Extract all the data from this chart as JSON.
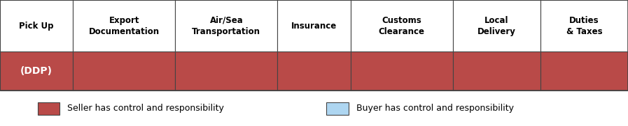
{
  "columns": [
    "Pick Up",
    "Export\nDocumentation",
    "Air/Sea\nTransportation",
    "Insurance",
    "Customs\nClearance",
    "Local\nDelivery",
    "Duties\n& Taxes"
  ],
  "col_widths": [
    1.0,
    1.4,
    1.4,
    1.0,
    1.4,
    1.2,
    1.2
  ],
  "row_label": "(DDP)",
  "seller_color": "#B94A48",
  "buyer_color": "#AED6F1",
  "header_bg": "#FFFFFF",
  "border_color": "#444444",
  "legend_seller_label": "Seller has control and responsibility",
  "legend_buyer_label": "Buyer has control and responsibility",
  "seller_cells": [
    0,
    1,
    2,
    3,
    4,
    5,
    6
  ],
  "buyer_cells": [],
  "fig_width": 8.97,
  "fig_height": 1.81,
  "header_fontsize": 8.5,
  "row_label_fontsize": 10,
  "legend_fontsize": 9
}
